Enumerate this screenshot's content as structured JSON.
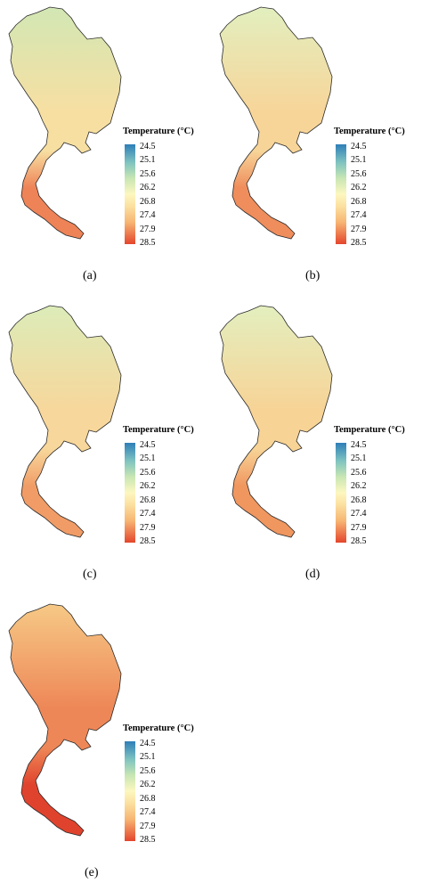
{
  "legend": {
    "title": "Temperature (°C)",
    "ticks": [
      "24.5",
      "25.1",
      "25.6",
      "26.2",
      "26.8",
      "27.4",
      "27.9",
      "28.5"
    ],
    "min": 24.5,
    "max": 28.5
  },
  "colors": {
    "cold": "#2f7fb8",
    "c2": "#7ec3c0",
    "c3": "#c8e6b4",
    "mid": "#fdf7c0",
    "c5": "#fbe0a0",
    "c6": "#f7b673",
    "warm": "#e4462c",
    "outline": "#2a2a2a"
  },
  "panels": [
    {
      "id": "a",
      "caption": "(a)",
      "north": "#d2e7b4",
      "center": "#f7dfa2",
      "south": "#ee8357"
    },
    {
      "id": "b",
      "caption": "(b)",
      "north": "#e2efbf",
      "center": "#f7d599",
      "south": "#ef8d5c"
    },
    {
      "id": "c",
      "caption": "(c)",
      "north": "#dcecb9",
      "center": "#f7d79b",
      "south": "#f19c66"
    },
    {
      "id": "d",
      "caption": "(d)",
      "north": "#e3efbf",
      "center": "#f7d396",
      "south": "#f0965f"
    },
    {
      "id": "e",
      "caption": "(e)",
      "north": "#f6c986",
      "center": "#ee8757",
      "south": "#e0432d"
    }
  ]
}
